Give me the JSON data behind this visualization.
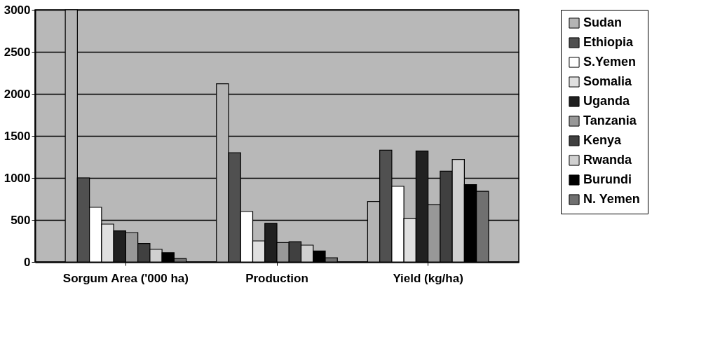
{
  "chart_data": {
    "type": "bar",
    "categories": [
      "Sorgum Area ('000 ha)",
      "Production",
      "Yield (kg/ha)"
    ],
    "series": [
      {
        "name": "Sudan",
        "color": "#b4b4b4",
        "values": [
          3000,
          2120,
          720
        ]
      },
      {
        "name": "Ethiopia",
        "color": "#505050",
        "values": [
          1000,
          1300,
          1330
        ]
      },
      {
        "name": "S.Yemen",
        "color": "#ffffff",
        "values": [
          650,
          600,
          900
        ]
      },
      {
        "name": "Somalia",
        "color": "#e0e0e0",
        "values": [
          450,
          250,
          520
        ]
      },
      {
        "name": "Uganda",
        "color": "#202020",
        "values": [
          370,
          460,
          1320
        ]
      },
      {
        "name": "Tanzania",
        "color": "#989898",
        "values": [
          350,
          230,
          680
        ]
      },
      {
        "name": "Kenya",
        "color": "#404040",
        "values": [
          220,
          240,
          1080
        ]
      },
      {
        "name": "Rwanda",
        "color": "#d0d0d0",
        "values": [
          150,
          200,
          1220
        ]
      },
      {
        "name": "Burundi",
        "color": "#000000",
        "values": [
          110,
          130,
          920
        ]
      },
      {
        "name": "N. Yemen",
        "color": "#707070",
        "values": [
          40,
          50,
          840
        ]
      }
    ],
    "ylim": [
      0,
      3000
    ],
    "yticks": [
      0,
      500,
      1000,
      1500,
      2000,
      2500,
      3000
    ],
    "grid": "y",
    "legend": "right"
  }
}
